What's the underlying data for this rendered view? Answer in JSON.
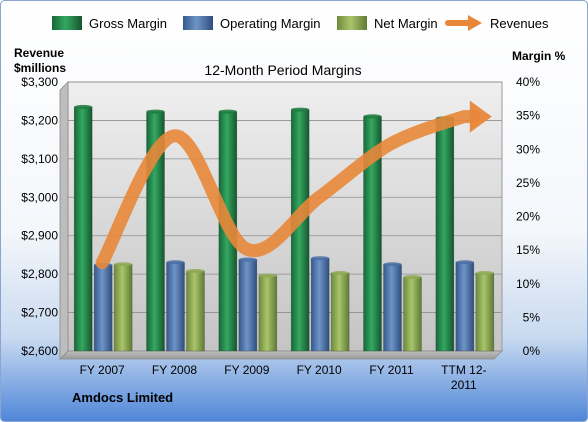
{
  "chart_data": {
    "type": "bar",
    "title": "12-Month Period Margins",
    "company": "Amdocs Limited",
    "categories": [
      "FY 2007",
      "FY 2008",
      "FY 2009",
      "FY 2010",
      "FY 2011",
      "TTM 12-2011"
    ],
    "category_lines": [
      [
        "FY 2007"
      ],
      [
        "FY 2008"
      ],
      [
        "FY 2009"
      ],
      [
        "FY 2010"
      ],
      [
        "FY 2011"
      ],
      [
        "TTM 12-",
        "2011"
      ]
    ],
    "y_left": {
      "label_lines": [
        "Revenue",
        "$millions"
      ],
      "range": [
        2600,
        3300
      ],
      "step": 100,
      "tick_labels": [
        "$2,600",
        "$2,700",
        "$2,800",
        "$2,900",
        "$3,000",
        "$3,100",
        "$3,200",
        "$3,300"
      ]
    },
    "y_right": {
      "label": "Margin %",
      "range": [
        0,
        40
      ],
      "step": 5,
      "tick_labels": [
        "0%",
        "5%",
        "10%",
        "15%",
        "20%",
        "25%",
        "30%",
        "35%",
        "40%"
      ]
    },
    "series": [
      {
        "name": "Gross Margin",
        "kind": "bar",
        "axis": "right",
        "color": "#1E7A3E",
        "values": [
          36.3,
          35.6,
          35.6,
          35.9,
          34.9,
          34.6
        ]
      },
      {
        "name": "Operating Margin",
        "kind": "bar",
        "axis": "right",
        "color": "#4A6FA5",
        "values": [
          12.8,
          13.2,
          13.6,
          13.8,
          12.9,
          13.2
        ]
      },
      {
        "name": "Net Margin",
        "kind": "bar",
        "axis": "right",
        "color": "#8FAA55",
        "values": [
          12.9,
          11.9,
          11.2,
          11.6,
          11.0,
          11.6
        ]
      },
      {
        "name": "Revenues",
        "kind": "line",
        "axis": "left",
        "color": "#E8873A",
        "values": [
          2830,
          3160,
          2865,
          3000,
          3140,
          3210
        ]
      }
    ],
    "grid": true,
    "legend_position": "top"
  }
}
